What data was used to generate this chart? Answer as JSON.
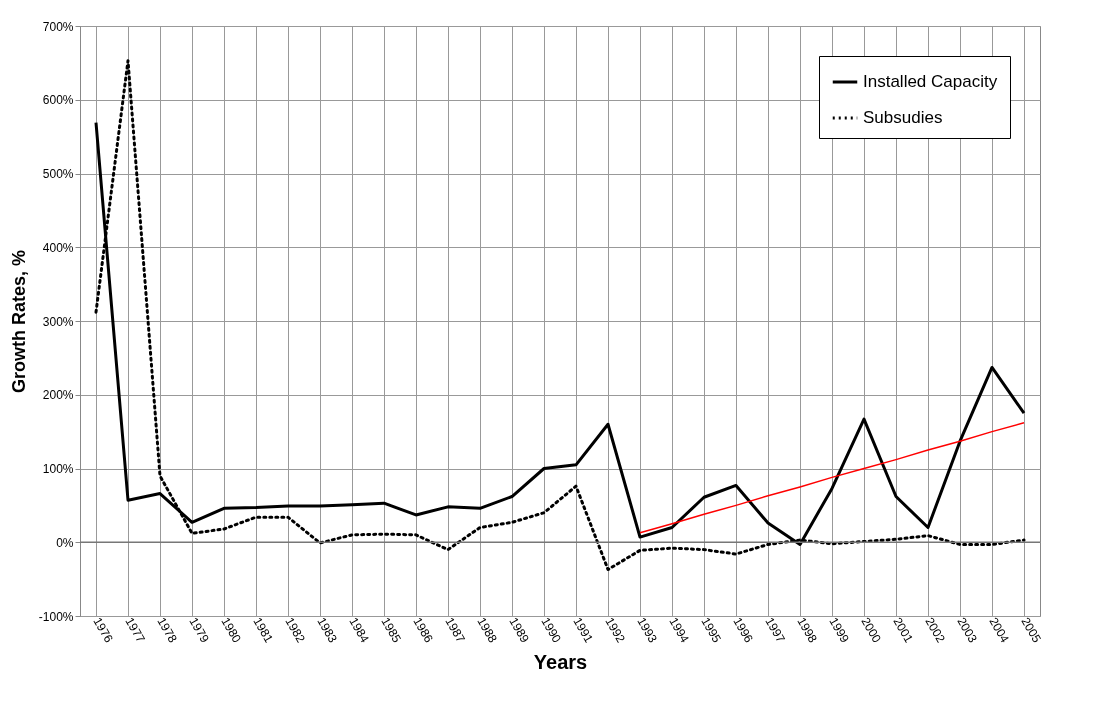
{
  "chart_data": {
    "type": "line",
    "xlabel": "Years",
    "ylabel": "Growth Rates, %",
    "categories": [
      "1976",
      "1977",
      "1978",
      "1979",
      "1980",
      "1981",
      "1982",
      "1983",
      "1984",
      "1985",
      "1986",
      "1987",
      "1988",
      "1989",
      "1990",
      "1991",
      "1992",
      "1993",
      "1994",
      "1995",
      "1996",
      "1997",
      "1998",
      "1999",
      "2000",
      "2001",
      "2002",
      "2003",
      "2004",
      "2005"
    ],
    "series": [
      {
        "name": "Installed Capacity",
        "color": "#000000",
        "line_style": "solid",
        "values": [
          569,
          57,
          66,
          27,
          46,
          47,
          49,
          49,
          51,
          53,
          37,
          48,
          46,
          62,
          100,
          105,
          160,
          7,
          20,
          61,
          77,
          26,
          -3,
          73,
          167,
          62,
          20,
          137,
          237,
          175
        ]
      },
      {
        "name": "Subsudies",
        "color": "#000000",
        "line_style": "dotted",
        "values": [
          312,
          653,
          90,
          12,
          18,
          34,
          34,
          -1,
          10,
          11,
          10,
          -10,
          20,
          27,
          40,
          76,
          -37,
          -11,
          -8,
          -10,
          -16,
          -3,
          3,
          -2,
          1,
          4,
          9,
          -3,
          -3,
          3
        ]
      },
      {
        "type": "line",
        "color": "#ff0000",
        "line_style": "solid",
        "values": [
          null,
          null,
          null,
          null,
          null,
          null,
          null,
          null,
          null,
          null,
          null,
          null,
          null,
          null,
          null,
          null,
          null,
          13,
          25,
          38,
          50,
          63,
          75,
          88,
          100,
          112,
          125,
          137,
          150,
          162
        ]
      }
    ],
    "ylim": [
      -100,
      700
    ],
    "yticks": [
      {
        "value": -100,
        "label": "-100%"
      },
      {
        "value": 0,
        "label": "0%"
      },
      {
        "value": 100,
        "label": "100%"
      },
      {
        "value": 200,
        "label": "200%"
      },
      {
        "value": 300,
        "label": "300%"
      },
      {
        "value": 400,
        "label": "400%"
      },
      {
        "value": 500,
        "label": "500%"
      },
      {
        "value": 600,
        "label": "600%"
      },
      {
        "value": 700,
        "label": "700%"
      }
    ],
    "grid": true,
    "legend": "top right"
  }
}
